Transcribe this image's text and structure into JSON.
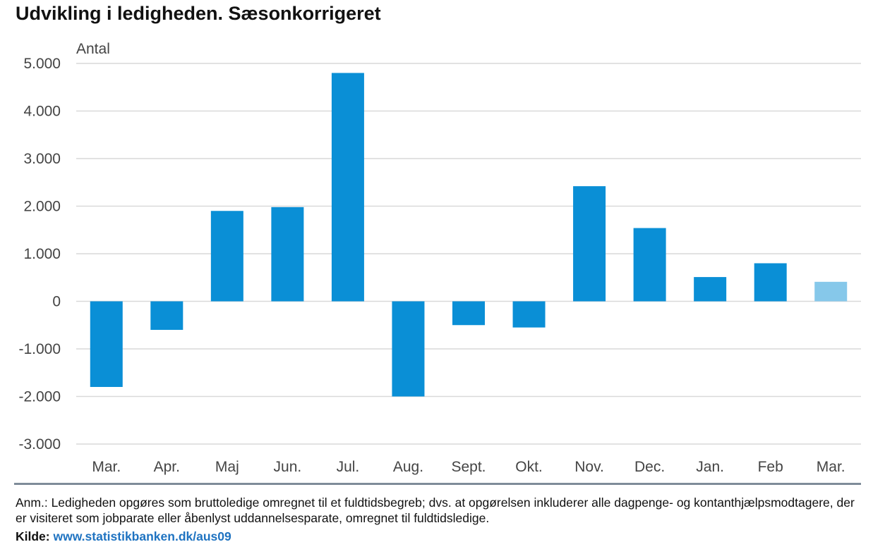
{
  "title": "Udvikling i ledigheden. Sæsonkorrigeret",
  "note": "Anm.: Ledigheden opgøres som bruttoledige omregnet til et fuldtidsbegreb; dvs. at opgørelsen inkluderer alle dagpenge- og kontanthjælpsmodtagere, der er visiteret som jobparate eller åbenlyst uddannelsesparate, omregnet til fuldtidsledige.",
  "source": {
    "label": "Kilde:",
    "link": "www.statistikbanken.dk/aus09"
  },
  "colors": {
    "bar": "#0a8fd6",
    "bar_highlight": "#86c8ea",
    "grid": "#d9d9d9",
    "axis_text": "#444444"
  },
  "chart_data": {
    "type": "bar",
    "title": "Udvikling i ledigheden. Sæsonkorrigeret",
    "ylabel": "Antal",
    "xlabel": "",
    "categories": [
      "Mar.",
      "Apr.",
      "Maj",
      "Jun.",
      "Jul.",
      "Aug.",
      "Sept.",
      "Okt.",
      "Nov.",
      "Dec.",
      "Jan.",
      "Feb",
      "Mar."
    ],
    "values": [
      -1800,
      -600,
      1900,
      1980,
      4800,
      -2000,
      -500,
      -550,
      2420,
      1540,
      510,
      800,
      410
    ],
    "highlight_index": 12,
    "ylim": [
      -3000,
      5000
    ],
    "yticks": [
      5000,
      4000,
      3000,
      2000,
      1000,
      0,
      -1000,
      -2000,
      -3000
    ],
    "ytick_labels": [
      "5.000",
      "4.000",
      "3.000",
      "2.000",
      "1.000",
      "0",
      "-1.000",
      "-2.000",
      "-3.000"
    ],
    "grid": true
  }
}
